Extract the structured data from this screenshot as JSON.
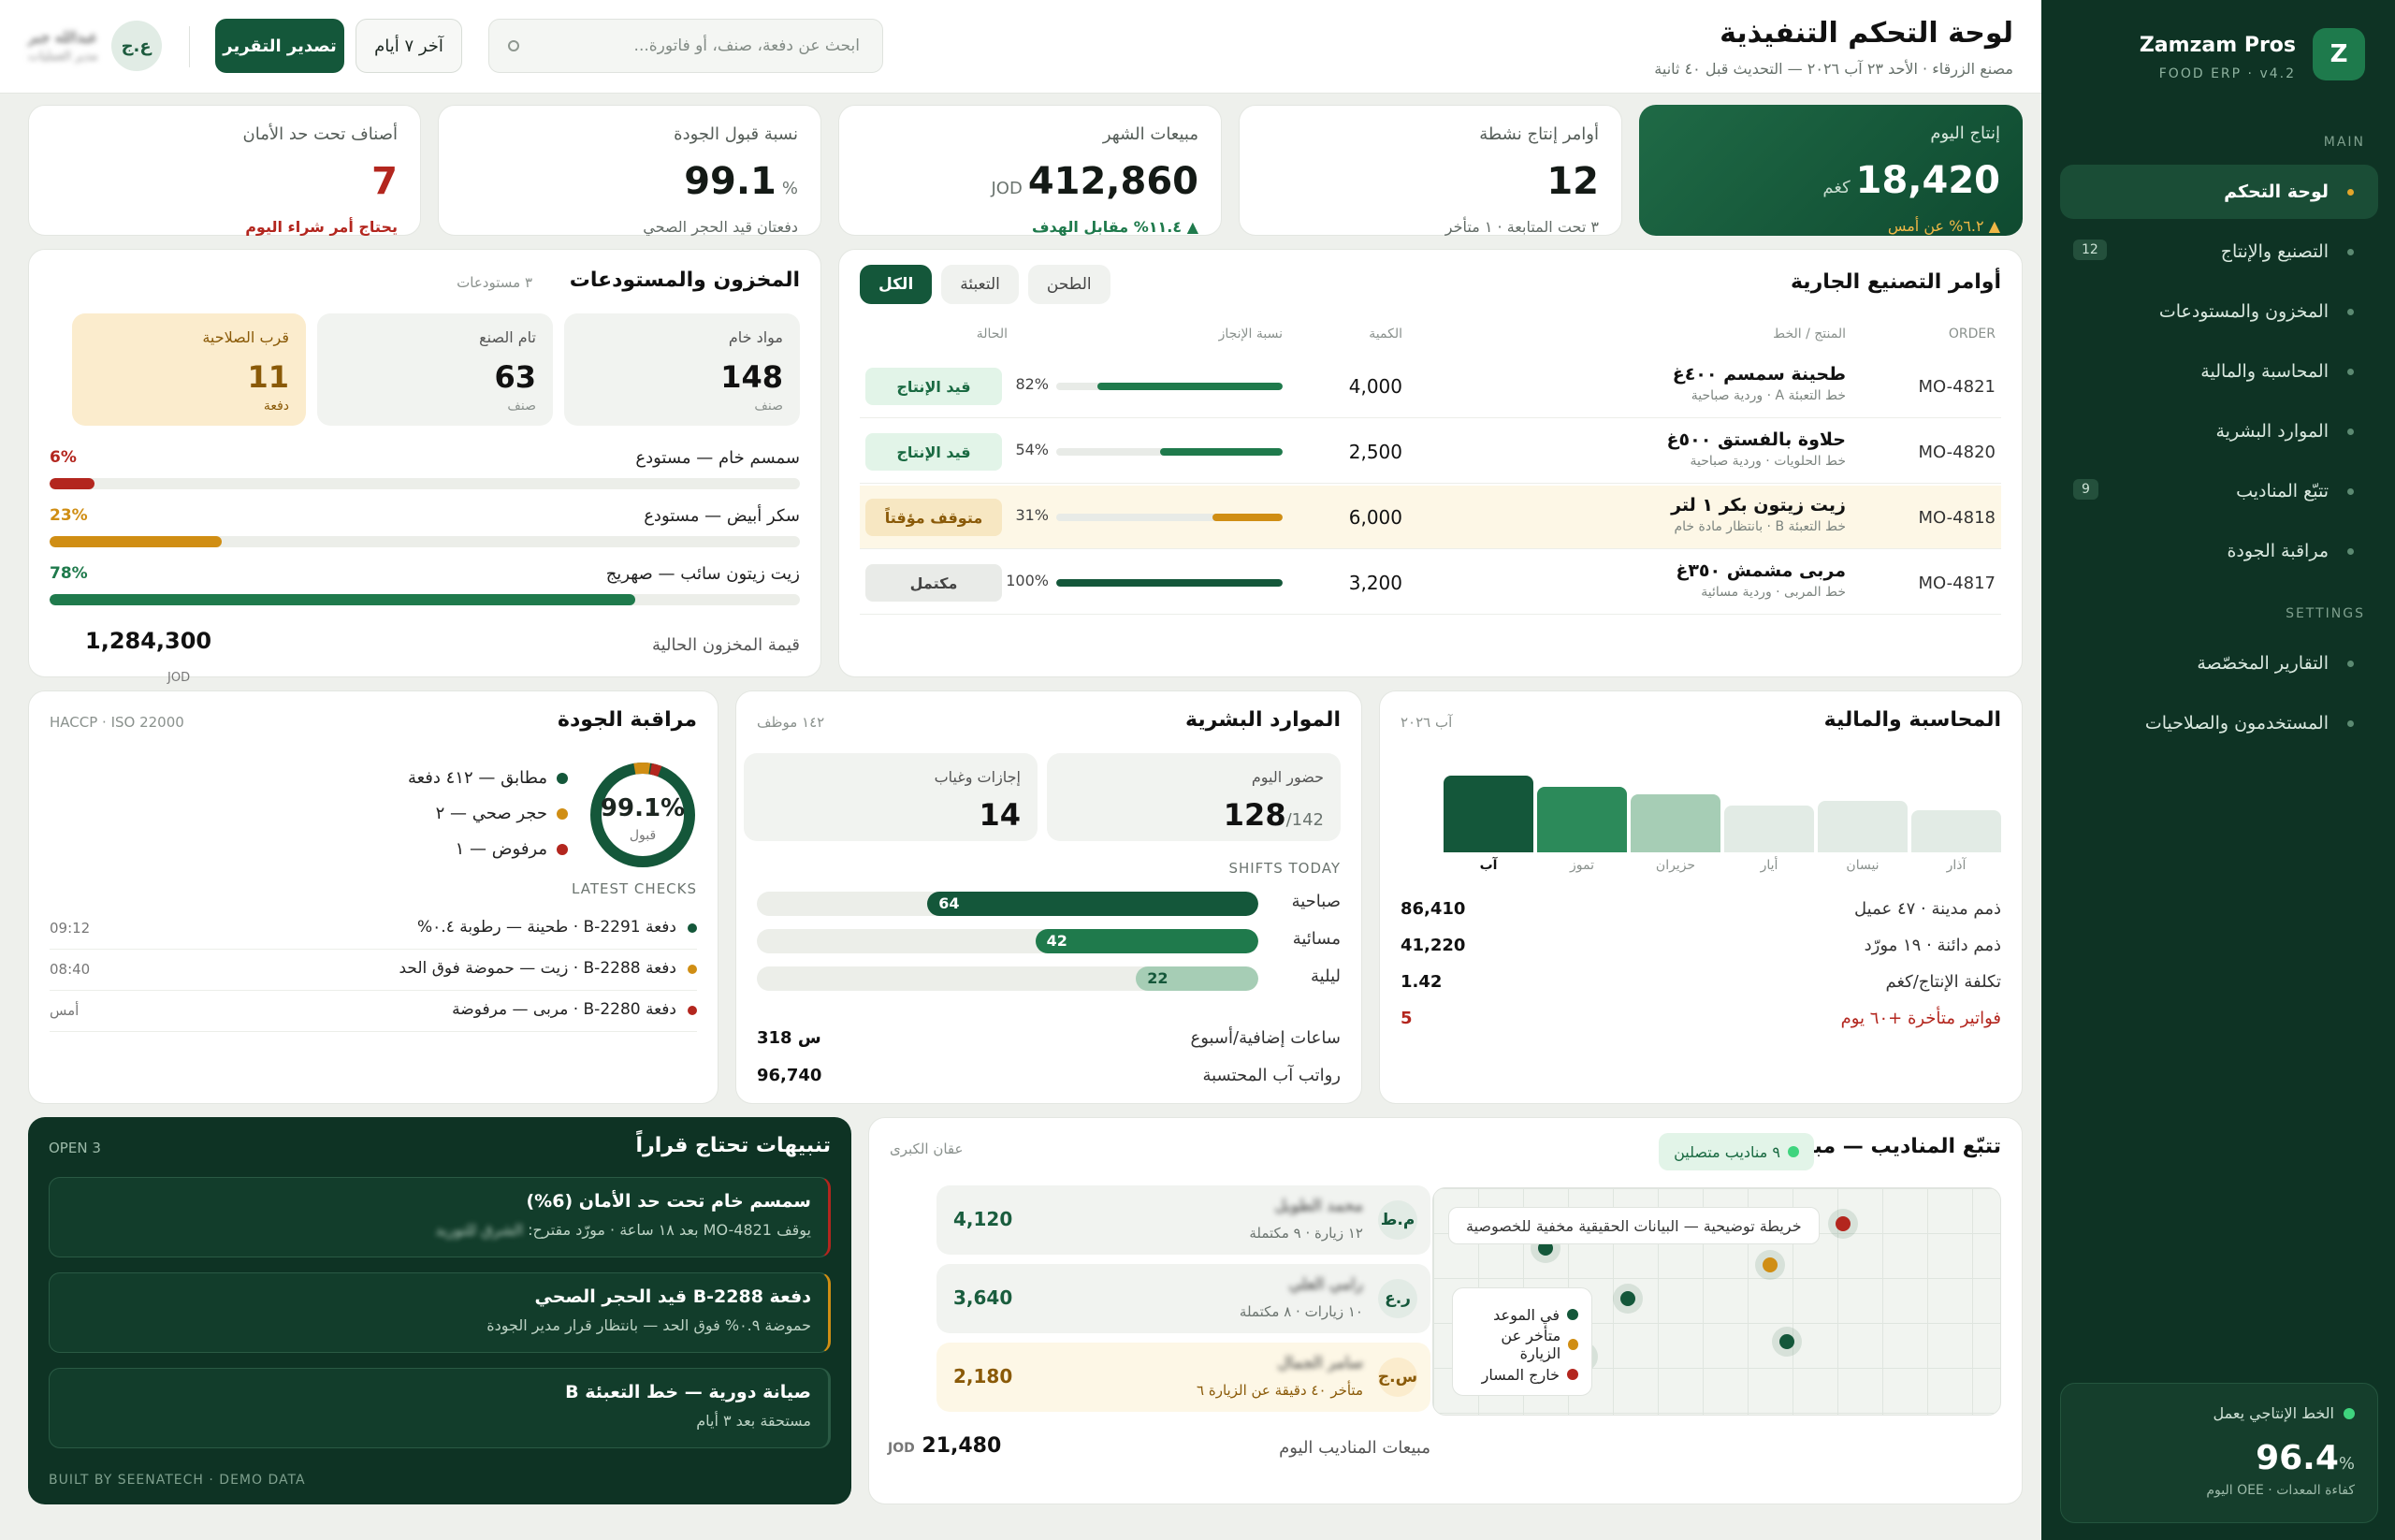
{
  "sidebar": {
    "logo": "Z",
    "brand": "Zamzam Pros",
    "version": "FOOD ERP · v4.2",
    "section_main": "MAIN",
    "section_settings": "SETTINGS",
    "items": [
      {
        "label": "لوحة التحكم",
        "badge": ""
      },
      {
        "label": "التصنيع والإنتاج",
        "badge": "12"
      },
      {
        "label": "المخزون والمستودعات",
        "badge": ""
      },
      {
        "label": "المحاسبة والمالية",
        "badge": ""
      },
      {
        "label": "الموارد البشرية",
        "badge": ""
      },
      {
        "label": "تتبّع المناديب",
        "badge": "9"
      },
      {
        "label": "مراقبة الجودة",
        "badge": ""
      }
    ],
    "settings_items": [
      {
        "label": "التقارير المخصّصة"
      },
      {
        "label": "المستخدمون والصلاحيات"
      }
    ],
    "oee": {
      "label": "الخط الإنتاجي يعمل",
      "value": "96.4",
      "unit": "%",
      "sub": "كفاءة المعدات · OEE اليوم"
    }
  },
  "header": {
    "title": "لوحة التحكم التنفيذية",
    "subtitle": "مصنع الزرقاء · الأحد ٢٣ آب ٢٠٢٦ — التحديث قبل ٤٠ ثانية",
    "search_placeholder": "ابحث عن دفعة، صنف، أو فاتورة...",
    "range": "آخر ٧ أيام",
    "export": "تصدير التقرير",
    "user_initials": "ع.ج",
    "user_name": "عبدالله جبر",
    "user_role": "مدير العمليات"
  },
  "kpis": [
    {
      "label": "إنتاج اليوم",
      "value": "18,420",
      "unit": "كغم",
      "foot": "▲ ٦.٢% عن أمس"
    },
    {
      "label": "أوامر إنتاج نشطة",
      "value": "12",
      "unit": "",
      "foot": "٣ تحت المتابعة · ١ متأخر"
    },
    {
      "label": "مبيعات الشهر",
      "value": "412,860",
      "unit": "JOD",
      "foot": "▲ ١١.٤% مقابل الهدف"
    },
    {
      "label": "نسبة قبول الجودة",
      "value": "99.1",
      "unit": "%",
      "foot": "دفعتان قيد الحجر الصحي"
    },
    {
      "label": "أصناف تحت حد الأمان",
      "value": "7",
      "unit": "",
      "foot": "يحتاج أمر شراء اليوم"
    }
  ],
  "production": {
    "title": "أوامر التصنيع الجارية",
    "tabs": [
      "الكل",
      "التعبئة",
      "الطحن"
    ],
    "headers": {
      "order": "ORDER",
      "product": "المنتج / الخط",
      "qty": "الكمية",
      "progress": "نسبة الإنجاز",
      "status": "الحالة"
    },
    "rows": [
      {
        "order": "MO-4821",
        "product": "طحينة سمسم ٤٠٠غ",
        "line": "خط التعبئة A · وردية صباحية",
        "qty": "4,000",
        "pct": 82,
        "pct_label": "82%",
        "status": "قيد الإنتاج",
        "kind": "active"
      },
      {
        "order": "MO-4820",
        "product": "حلاوة بالفستق ٥٠٠غ",
        "line": "خط الحلويات · وردية صباحية",
        "qty": "2,500",
        "pct": 54,
        "pct_label": "54%",
        "status": "قيد الإنتاج",
        "kind": "active"
      },
      {
        "order": "MO-4818",
        "product": "زيت زيتون بكر ١ لتر",
        "line": "خط التعبئة B · بانتظار مادة خام",
        "qty": "6,000",
        "pct": 31,
        "pct_label": "31%",
        "status": "متوقف مؤقتاً",
        "kind": "paused"
      },
      {
        "order": "MO-4817",
        "product": "مربى مشمش ٣٥٠غ",
        "line": "خط المربى · وردية مسائية",
        "qty": "3,200",
        "pct": 100,
        "pct_label": "100%",
        "status": "مكتمل",
        "kind": "done"
      }
    ]
  },
  "inventory": {
    "title": "المخزون والمستودعات",
    "meta": "٣ مستودعات",
    "boxes": [
      {
        "label": "مواد خام",
        "value": "148",
        "unit": "صنف"
      },
      {
        "label": "تام الصنع",
        "value": "63",
        "unit": "صنف"
      },
      {
        "label": "قرب الصلاحية",
        "value": "11",
        "unit": "دفعة"
      }
    ],
    "stocks": [
      {
        "name": "سمسم خام — مستودع",
        "pct": 6,
        "pct_label": "6%",
        "color": "#b3261e"
      },
      {
        "name": "سكر أبيض — مستودع",
        "pct": 23,
        "pct_label": "23%",
        "color": "#d08e14"
      },
      {
        "name": "زيت زيتون سائب — صهريج",
        "pct": 78,
        "pct_label": "78%",
        "color": "#1f7a4c"
      }
    ],
    "value_label": "قيمة المخزون الحالية",
    "value": "1,284,300",
    "value_unit": "JOD"
  },
  "finance": {
    "title": "المحاسبة والمالية",
    "meta": "آب ٢٠٢٦",
    "chart_data": {
      "type": "bar",
      "categories": [
        "آذار",
        "نيسان",
        "أيار",
        "حزيران",
        "تموز",
        "آب"
      ],
      "values": [
        45,
        55,
        50,
        62,
        70,
        82
      ],
      "colors": [
        "#e2ebe5",
        "#e2ebe5",
        "#e2ebe5",
        "#a6cdb5",
        "#2c8a5a",
        "#14573a"
      ]
    },
    "rows": [
      {
        "k": "ذمم مدينة · ٤٧ عميل",
        "v": "86,410"
      },
      {
        "k": "ذمم دائنة · ١٩ مورّد",
        "v": "41,220"
      },
      {
        "k": "تكلفة الإنتاج/كغم",
        "v": "1.42"
      },
      {
        "k": "فواتير متأخرة +٦٠ يوم",
        "v": "5"
      }
    ]
  },
  "hr": {
    "title": "الموارد البشرية",
    "meta": "١٤٢ موظف",
    "attendance_label": "حضور اليوم",
    "attendance": "128",
    "attendance_total": "/142",
    "leave_label": "إجازات وغياب",
    "leave": "14",
    "shifts_title": "SHIFTS TODAY",
    "shifts": [
      {
        "name": "صباحية",
        "value": "64",
        "pct": 46
      },
      {
        "name": "مسائية",
        "value": "42",
        "pct": 31
      },
      {
        "name": "ليلية",
        "value": "22",
        "pct": 17
      }
    ],
    "overtime_label": "ساعات إضافية/أسبوع",
    "overtime": "318 س",
    "payroll_label": "رواتب آب المحتسبة",
    "payroll": "96,740"
  },
  "quality": {
    "title": "مراقبة الجودة",
    "meta": "HACCP · ISO 22000",
    "donut_value": "99.1%",
    "donut_label": "قبول",
    "legend": [
      {
        "label": "مطابق — ٤١٢ دفعة",
        "color": "#14573a"
      },
      {
        "label": "حجر صحي — ٢",
        "color": "#d08e14"
      },
      {
        "label": "مرفوض — ١",
        "color": "#b3261e"
      }
    ],
    "checks_title": "LATEST CHECKS",
    "checks": [
      {
        "text": "دفعة B-2291 · طحينة — رطوبة ٠.٤%",
        "time": "09:12",
        "color": "#14573a"
      },
      {
        "text": "دفعة B-2288 · زيت — حموضة فوق الحد",
        "time": "08:40",
        "color": "#d08e14"
      },
      {
        "text": "دفعة B-2280 · مربى — مرفوضة",
        "time": "أمس",
        "color": "#b3261e"
      }
    ]
  },
  "alerts": {
    "title": "تنبيهات تحتاج قراراً",
    "meta": "OPEN 3",
    "items": [
      {
        "title": "سمسم خام تحت حد الأمان (6%)",
        "sub": "يوقف MO-4821 بعد ١٨ ساعة · مورّد مقترح:",
        "blur": "الشرق للتوريد",
        "color": "#b3261e"
      },
      {
        "title": "دفعة B-2288 قيد الحجر الصحي",
        "sub": "حموضة ٠.٩% فوق الحد — بانتظار قرار مدير الجودة",
        "blur": "",
        "color": "#d08e14"
      },
      {
        "title": "صيانة دورية — خط التعبئة B",
        "sub": "مستحقة بعد ٣ أيام",
        "blur": "",
        "color": "#2a5a44"
      }
    ],
    "footer": "BUILT BY SEENATECH · DEMO DATA"
  },
  "reps": {
    "title": "تتبّع المناديب — مباشر",
    "live": "٩ مناديب متصلين",
    "region": "عقان الكبرى",
    "map_note": "خريطة توضيحية — البيانات الحقيقية مخفية للخصوصية",
    "map_legend": [
      {
        "label": "في الموعد",
        "color": "#14573a"
      },
      {
        "label": "متأخر عن الزيارة",
        "color": "#d08e14"
      },
      {
        "label": "خارج المسار",
        "color": "#b3261e"
      }
    ],
    "list": [
      {
        "initials": "م.ط",
        "name": "محمد الطويل",
        "sub": "١٢ زيارة · ٩ مكتملة",
        "amount": "4,120"
      },
      {
        "initials": "ر.ع",
        "name": "رامي العلي",
        "sub": "١٠ زيارات · ٨ مكتملة",
        "amount": "3,640"
      },
      {
        "initials": "س.ج",
        "name": "سامر الجمال",
        "sub": "متأخر ٤٠ دقيقة عن الزيارة ٦",
        "amount": "2,180"
      }
    ],
    "total_label": "مبيعات المناديب اليوم",
    "total": "21,480",
    "total_unit": "JOD"
  }
}
